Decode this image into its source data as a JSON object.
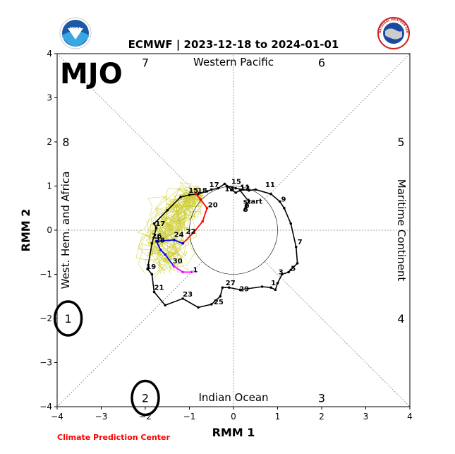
{
  "header": {
    "title": "ECMWF | 2023-12-18 to 2024-01-01",
    "footer": "Climate Prediction Center",
    "logo_left_text": "NOAA",
    "logo_right_text": "NATIONAL WEATHER SERVICE"
  },
  "chart_data": {
    "type": "line",
    "title": "ECMWF | 2023-12-18 to 2024-01-01",
    "big_label": "MJO",
    "xlabel": "RMM 1",
    "ylabel": "RMM 2",
    "xlim": [
      -4,
      4
    ],
    "ylim": [
      -4,
      4
    ],
    "xticks": [
      -4,
      -3,
      -2,
      -1,
      0,
      1,
      2,
      3,
      4
    ],
    "yticks": [
      -4,
      -3,
      -2,
      -1,
      0,
      1,
      2,
      3,
      4
    ],
    "regions": {
      "top": "Western Pacific",
      "bottom": "Indian Ocean",
      "left": "West. Hem. and Africa",
      "right": "Maritime Continent"
    },
    "phases": [
      {
        "label": "1",
        "x": -3.75,
        "y": -2.0,
        "circled": true
      },
      {
        "label": "2",
        "x": -2.0,
        "y": -3.8,
        "circled": true
      },
      {
        "label": "3",
        "x": 2.0,
        "y": -3.8,
        "circled": false
      },
      {
        "label": "4",
        "x": 3.8,
        "y": -2.0,
        "circled": false
      },
      {
        "label": "5",
        "x": 3.8,
        "y": 2.0,
        "circled": false
      },
      {
        "label": "6",
        "x": 2.0,
        "y": 3.8,
        "circled": false
      },
      {
        "label": "7",
        "x": -2.0,
        "y": 3.8,
        "circled": false
      },
      {
        "label": "8",
        "x": -3.8,
        "y": 2.0,
        "circled": false
      }
    ],
    "observed": {
      "color": "#000000",
      "points": [
        [
          0.25,
          0.45
        ],
        [
          0.28,
          0.55
        ],
        [
          0.35,
          0.65
        ],
        [
          0.15,
          0.9
        ],
        [
          0.05,
          0.85
        ],
        [
          -0.05,
          0.92
        ],
        [
          -0.2,
          1.05
        ],
        [
          -0.35,
          0.95
        ],
        [
          -0.5,
          0.92
        ],
        [
          -0.6,
          0.88
        ],
        [
          -0.8,
          0.82
        ],
        [
          -1.0,
          0.8
        ],
        [
          -1.2,
          0.75
        ],
        [
          -1.5,
          0.45
        ],
        [
          -1.8,
          0.15
        ],
        [
          -1.75,
          0.05
        ],
        [
          -1.85,
          -0.3
        ],
        [
          -1.95,
          -0.88
        ],
        [
          -1.85,
          -1.0
        ],
        [
          -1.8,
          -1.4
        ],
        [
          -1.55,
          -1.7
        ],
        [
          -1.15,
          -1.55
        ],
        [
          -0.8,
          -1.75
        ],
        [
          -0.5,
          -1.68
        ],
        [
          -0.3,
          -1.5
        ],
        [
          -0.25,
          -1.3
        ],
        [
          -0.1,
          -1.3
        ],
        [
          0.15,
          -1.35
        ],
        [
          0.65,
          -1.28
        ],
        [
          0.85,
          -1.3
        ],
        [
          0.95,
          -1.35
        ],
        [
          1.0,
          -1.2
        ],
        [
          1.1,
          -1.0
        ],
        [
          1.25,
          -0.95
        ],
        [
          1.3,
          -0.9
        ],
        [
          1.45,
          -0.75
        ],
        [
          1.42,
          -0.38
        ],
        [
          1.3,
          0.15
        ],
        [
          1.15,
          0.5
        ],
        [
          1.05,
          0.65
        ],
        [
          0.85,
          0.82
        ],
        [
          0.5,
          0.92
        ],
        [
          0.35,
          0.9
        ],
        [
          0.2,
          0.92
        ],
        [
          0.05,
          0.95
        ],
        [
          -0.15,
          1.0
        ]
      ],
      "day_labels": [
        {
          "text": "start",
          "x": 0.22,
          "y": 0.6
        },
        {
          "text": "9",
          "x": 0.25,
          "y": 0.5
        },
        {
          "text": "6",
          "x": 0.22,
          "y": 0.42
        },
        {
          "text": "11",
          "x": 0.15,
          "y": 0.92
        },
        {
          "text": "13",
          "x": -0.2,
          "y": 0.88
        },
        {
          "text": "15",
          "x": -0.05,
          "y": 1.05
        },
        {
          "text": "17",
          "x": -0.55,
          "y": 0.98
        },
        {
          "text": "15",
          "x": -1.02,
          "y": 0.85
        },
        {
          "text": "18",
          "x": -0.82,
          "y": 0.85
        },
        {
          "text": "20",
          "x": -0.58,
          "y": 0.52
        },
        {
          "text": "17",
          "x": -1.77,
          "y": 0.1
        },
        {
          "text": "26",
          "x": -1.85,
          "y": -0.18
        },
        {
          "text": "28",
          "x": -1.78,
          "y": -0.28
        },
        {
          "text": "24",
          "x": -1.35,
          "y": -0.15
        },
        {
          "text": "22",
          "x": -1.08,
          "y": -0.08
        },
        {
          "text": "30",
          "x": -1.38,
          "y": -0.75
        },
        {
          "text": "1",
          "x": -0.92,
          "y": -0.95
        },
        {
          "text": "19",
          "x": -1.98,
          "y": -0.88
        },
        {
          "text": "21",
          "x": -1.8,
          "y": -1.35
        },
        {
          "text": "23",
          "x": -1.15,
          "y": -1.5
        },
        {
          "text": "25",
          "x": -0.45,
          "y": -1.68
        },
        {
          "text": "27",
          "x": -0.18,
          "y": -1.25
        },
        {
          "text": "29",
          "x": 0.13,
          "y": -1.38
        },
        {
          "text": "1",
          "x": 0.85,
          "y": -1.25
        },
        {
          "text": "3",
          "x": 1.02,
          "y": -1.0
        },
        {
          "text": "5",
          "x": 1.3,
          "y": -0.92
        },
        {
          "text": "7",
          "x": 1.45,
          "y": -0.32
        },
        {
          "text": "9",
          "x": 1.08,
          "y": 0.65
        },
        {
          "text": "11",
          "x": 0.72,
          "y": 0.98
        },
        {
          "text": "13",
          "x": 0.15,
          "y": 0.9
        }
      ]
    },
    "forecast_ensemble_mean": [
      {
        "name": "",
        "color": "#ff0000",
        "points": [
          [
            -0.85,
            0.82
          ],
          [
            -0.75,
            0.7
          ],
          [
            -0.6,
            0.5
          ],
          [
            -0.7,
            0.2
          ],
          [
            -0.9,
            -0.05
          ],
          [
            -1.15,
            -0.3
          ]
        ]
      },
      {
        "name": "",
        "color": "#0000ff",
        "points": [
          [
            -1.15,
            -0.3
          ],
          [
            -1.35,
            -0.22
          ],
          [
            -1.75,
            -0.25
          ],
          [
            -1.65,
            -0.45
          ],
          [
            -1.55,
            -0.55
          ],
          [
            -1.35,
            -0.82
          ]
        ]
      },
      {
        "name": "",
        "color": "#ff00ff",
        "points": [
          [
            -1.35,
            -0.82
          ],
          [
            -1.15,
            -0.95
          ],
          [
            -0.95,
            -0.95
          ]
        ]
      }
    ],
    "unit_circle_radius": 1
  }
}
